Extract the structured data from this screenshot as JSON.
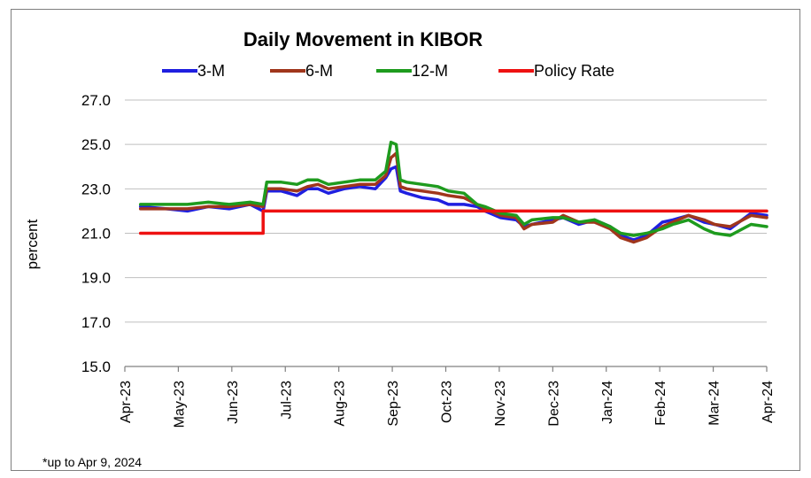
{
  "chart_data": {
    "type": "line",
    "title": "Daily Movement in KIBOR",
    "ylabel": "percent",
    "xlabel": "",
    "ylim": [
      15.0,
      27.0
    ],
    "yticks": [
      "15.0",
      "17.0",
      "19.0",
      "21.0",
      "23.0",
      "25.0",
      "27.0"
    ],
    "xlim": [
      0,
      12.3
    ],
    "xticks": [
      "Apr-23",
      "May-23",
      "Jun-23",
      "Jul-23",
      "Aug-23",
      "Sep-23",
      "Oct-23",
      "Nov-23",
      "Dec-23",
      "Jan-24",
      "Feb-24",
      "Mar-24",
      "Apr-24"
    ],
    "grid": "horizontal",
    "legend_position": "top",
    "footnote": "*up to Apr 9, 2024",
    "series": [
      {
        "name": "3-M",
        "color": "#1f1fe0",
        "x": [
          0.3,
          0.8,
          1.2,
          1.6,
          2.0,
          2.4,
          2.65,
          2.72,
          3.0,
          3.3,
          3.5,
          3.7,
          3.9,
          4.2,
          4.5,
          4.8,
          5.0,
          5.1,
          5.2,
          5.28,
          5.4,
          5.7,
          6.0,
          6.2,
          6.5,
          6.75,
          6.9,
          7.2,
          7.5,
          7.65,
          7.8,
          8.2,
          8.4,
          8.7,
          9.0,
          9.3,
          9.5,
          9.75,
          10.0,
          10.3,
          10.5,
          10.8,
          11.1,
          11.3,
          11.6,
          12.0,
          12.3
        ],
        "y": [
          22.2,
          22.1,
          22.0,
          22.2,
          22.1,
          22.3,
          22.0,
          22.9,
          22.9,
          22.7,
          23.0,
          23.0,
          22.8,
          23.0,
          23.1,
          23.0,
          23.5,
          23.9,
          24.0,
          22.9,
          22.8,
          22.6,
          22.5,
          22.3,
          22.3,
          22.2,
          22.0,
          21.7,
          21.6,
          21.3,
          21.4,
          21.6,
          21.7,
          21.4,
          21.6,
          21.3,
          20.9,
          20.7,
          20.9,
          21.5,
          21.6,
          21.8,
          21.5,
          21.4,
          21.2,
          21.9,
          21.8
        ]
      },
      {
        "name": "6-M",
        "color": "#a0361c",
        "x": [
          0.3,
          0.8,
          1.2,
          1.6,
          2.0,
          2.4,
          2.65,
          2.72,
          3.0,
          3.3,
          3.5,
          3.7,
          3.9,
          4.2,
          4.5,
          4.8,
          5.0,
          5.1,
          5.2,
          5.28,
          5.4,
          5.7,
          6.0,
          6.2,
          6.5,
          6.75,
          6.9,
          7.2,
          7.5,
          7.65,
          7.8,
          8.2,
          8.4,
          8.7,
          9.0,
          9.3,
          9.5,
          9.75,
          10.0,
          10.3,
          10.5,
          10.8,
          11.1,
          11.3,
          11.6,
          12.0,
          12.3
        ],
        "y": [
          22.1,
          22.1,
          22.1,
          22.2,
          22.2,
          22.3,
          22.2,
          23.0,
          23.0,
          22.9,
          23.1,
          23.2,
          23.0,
          23.1,
          23.2,
          23.2,
          23.6,
          24.4,
          24.6,
          23.1,
          23.0,
          22.9,
          22.8,
          22.7,
          22.6,
          22.3,
          22.1,
          21.8,
          21.7,
          21.2,
          21.4,
          21.5,
          21.8,
          21.5,
          21.5,
          21.2,
          20.8,
          20.6,
          20.8,
          21.3,
          21.5,
          21.8,
          21.6,
          21.4,
          21.3,
          21.8,
          21.7
        ]
      },
      {
        "name": "12-M",
        "color": "#1e9b1e",
        "x": [
          0.3,
          0.8,
          1.2,
          1.6,
          2.0,
          2.4,
          2.65,
          2.72,
          3.0,
          3.3,
          3.5,
          3.7,
          3.9,
          4.2,
          4.5,
          4.8,
          5.0,
          5.1,
          5.2,
          5.28,
          5.4,
          5.7,
          6.0,
          6.2,
          6.5,
          6.75,
          6.9,
          7.2,
          7.5,
          7.65,
          7.8,
          8.2,
          8.4,
          8.7,
          9.0,
          9.3,
          9.5,
          9.75,
          10.0,
          10.3,
          10.5,
          10.8,
          11.1,
          11.3,
          11.6,
          12.0,
          12.3
        ],
        "y": [
          22.3,
          22.3,
          22.3,
          22.4,
          22.3,
          22.4,
          22.3,
          23.3,
          23.3,
          23.2,
          23.4,
          23.4,
          23.2,
          23.3,
          23.4,
          23.4,
          23.8,
          25.1,
          25.0,
          23.4,
          23.3,
          23.2,
          23.1,
          22.9,
          22.8,
          22.3,
          22.2,
          21.9,
          21.8,
          21.4,
          21.6,
          21.7,
          21.7,
          21.5,
          21.6,
          21.3,
          21.0,
          20.9,
          21.0,
          21.2,
          21.4,
          21.6,
          21.2,
          21.0,
          20.9,
          21.4,
          21.3
        ]
      },
      {
        "name": "Policy Rate",
        "color": "#ee1111",
        "x": [
          0.3,
          2.65,
          2.65,
          12.3
        ],
        "y": [
          21.0,
          21.0,
          22.0,
          22.0
        ]
      }
    ]
  }
}
